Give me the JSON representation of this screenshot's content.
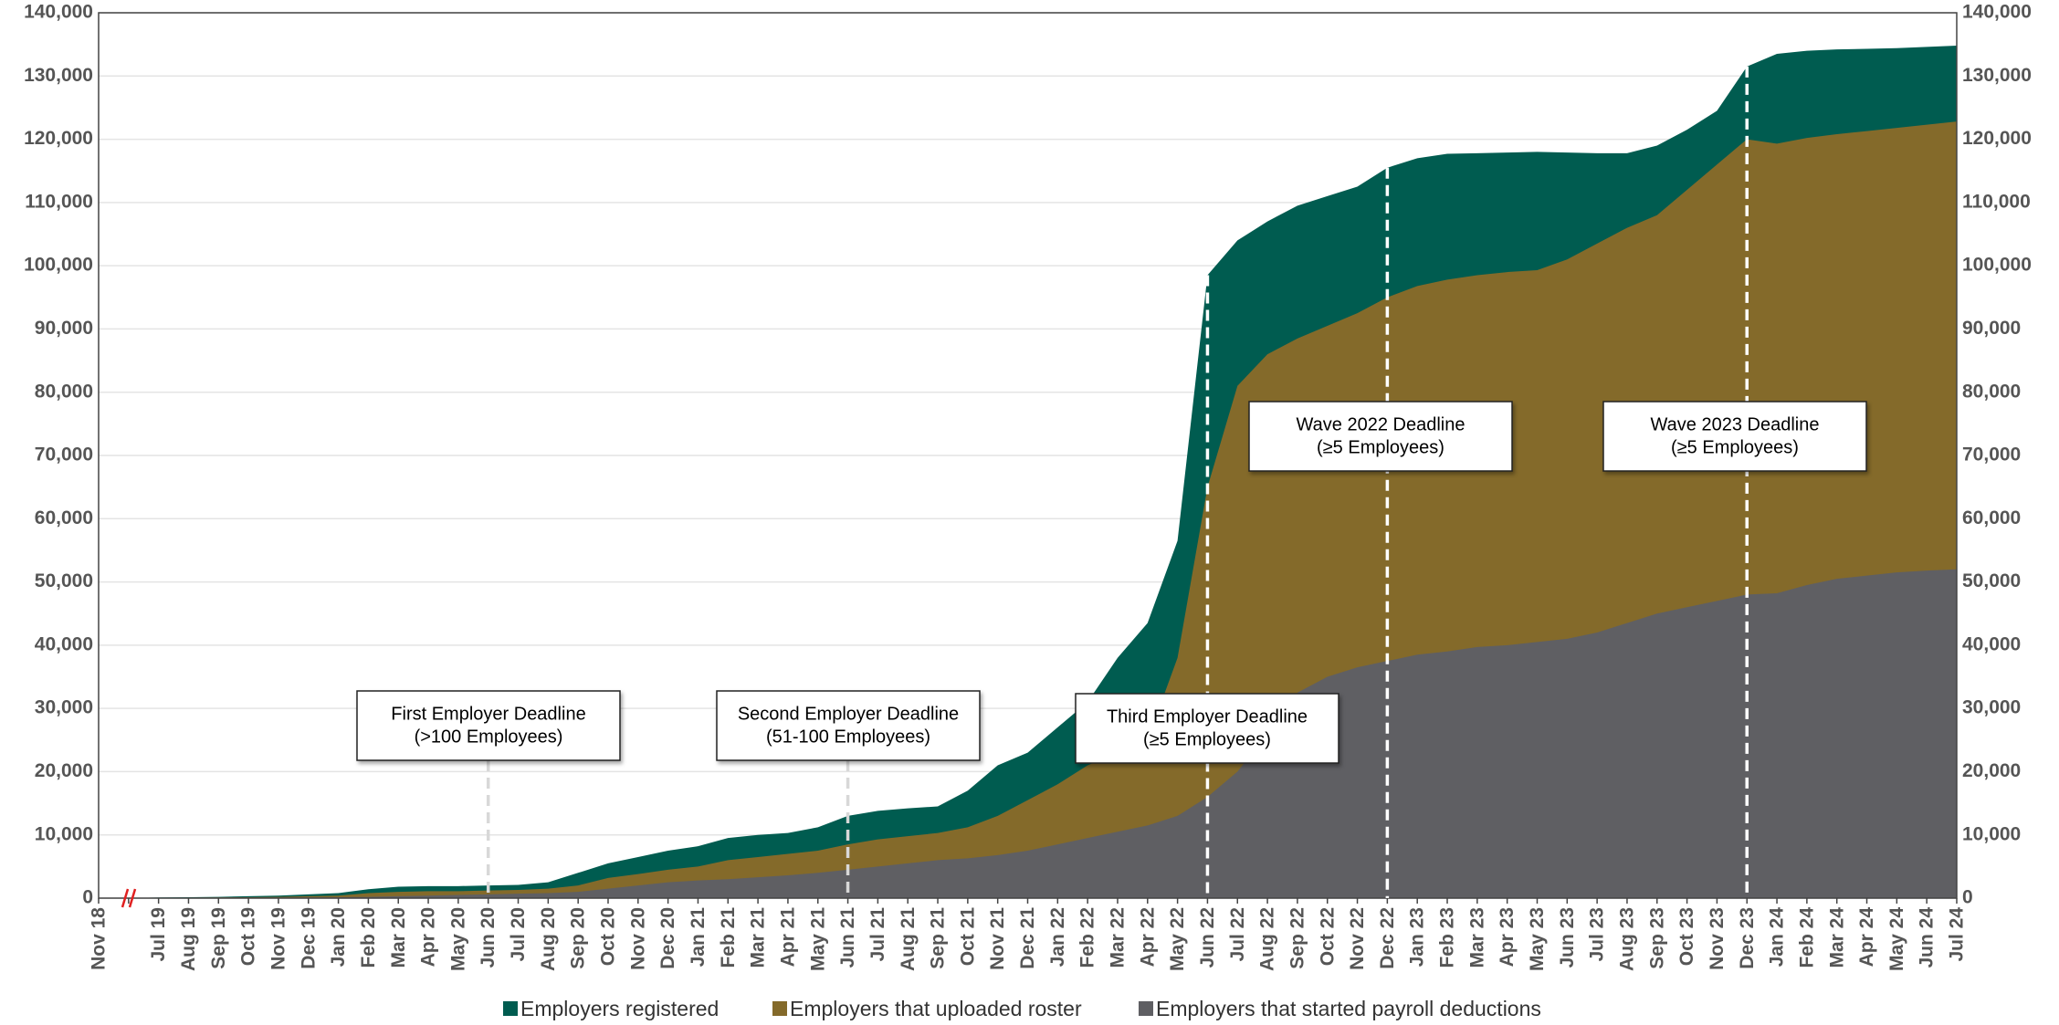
{
  "chart_data": {
    "type": "area",
    "categories": [
      "Nov 18",
      null,
      "Jul 19",
      "Aug 19",
      "Sep 19",
      "Oct 19",
      "Nov 19",
      "Dec 19",
      "Jan 20",
      "Feb 20",
      "Mar 20",
      "Apr 20",
      "May 20",
      "Jun 20",
      "Jul 20",
      "Aug 20",
      "Sep 20",
      "Oct 20",
      "Nov 20",
      "Dec 20",
      "Jan 21",
      "Feb 21",
      "Mar 21",
      "Apr 21",
      "May 21",
      "Jun 21",
      "Jul 21",
      "Aug 21",
      "Sep 21",
      "Oct 21",
      "Nov 21",
      "Dec 21",
      "Jan 22",
      "Feb 22",
      "Mar 22",
      "Apr 22",
      "May 22",
      "Jun 22",
      "Jul 22",
      "Aug 22",
      "Sep 22",
      "Oct 22",
      "Nov 22",
      "Dec 22",
      "Jan 23",
      "Feb 23",
      "Mar 23",
      "Apr 23",
      "May 23",
      "Jun 23",
      "Jul 23",
      "Aug 23",
      "Sep 23",
      "Oct 23",
      "Nov 23",
      "Dec 23",
      "Jan 24",
      "Feb 24",
      "Mar 24",
      "Apr 24",
      "May 24",
      "Jun 24",
      "Jul 24"
    ],
    "series": [
      {
        "name": "Employers registered",
        "color": "#005c50",
        "values": [
          0,
          0,
          100,
          150,
          200,
          300,
          400,
          600,
          800,
          1400,
          1800,
          1900,
          1900,
          2000,
          2100,
          2500,
          4000,
          5500,
          6500,
          7500,
          8200,
          9500,
          10000,
          10300,
          11200,
          13000,
          13800,
          14200,
          14500,
          17000,
          21000,
          23000,
          27000,
          31000,
          38000,
          43500,
          56500,
          98500,
          104000,
          107000,
          109500,
          111000,
          112500,
          115500,
          117000,
          117700,
          117800,
          117900,
          118000,
          117900,
          117800,
          117800,
          119000,
          121500,
          124500,
          131500,
          133500,
          134000,
          134200,
          134300,
          134400,
          134600,
          134800
        ]
      },
      {
        "name": "Employers that uploaded roster",
        "color": "#846a2a",
        "values": [
          0,
          0,
          50,
          80,
          100,
          150,
          200,
          300,
          400,
          800,
          1000,
          1100,
          1100,
          1200,
          1300,
          1500,
          2000,
          3200,
          3800,
          4500,
          5000,
          6000,
          6500,
          7000,
          7500,
          8500,
          9300,
          9800,
          10300,
          11200,
          13000,
          15500,
          18000,
          21000,
          23000,
          25000,
          38000,
          65000,
          81000,
          86000,
          88500,
          90500,
          92500,
          95000,
          96800,
          97800,
          98500,
          99000,
          99300,
          101000,
          103500,
          106000,
          108000,
          112000,
          116000,
          120000,
          119300,
          120200,
          120800,
          121300,
          121800,
          122300,
          122800
        ]
      },
      {
        "name": "Employers that started payroll deductions",
        "color": "#5f5f63",
        "values": [
          0,
          0,
          0,
          0,
          0,
          0,
          50,
          100,
          150,
          200,
          300,
          400,
          500,
          600,
          700,
          800,
          1000,
          1500,
          2000,
          2500,
          2800,
          3000,
          3300,
          3600,
          4000,
          4500,
          5000,
          5500,
          6000,
          6300,
          6800,
          7500,
          8500,
          9500,
          10500,
          11500,
          13000,
          16000,
          20000,
          26000,
          32500,
          35000,
          36500,
          37500,
          38500,
          39000,
          39700,
          40000,
          40500,
          41000,
          42000,
          43500,
          45000,
          46000,
          47000,
          48000,
          48200,
          49500,
          50500,
          51000,
          51500,
          51800,
          52000
        ]
      }
    ],
    "ylim": [
      0,
      140000
    ],
    "yticks": [
      0,
      {
        "value": 10000,
        "label": "10,000"
      },
      {
        "value": 20000,
        "label": "20,000"
      },
      {
        "value": 30000,
        "label": "30,000"
      },
      {
        "value": 40000,
        "label": "40,000"
      },
      {
        "value": 50000,
        "label": "50,000"
      },
      {
        "value": 60000,
        "label": "60,000"
      },
      {
        "value": 70000,
        "label": "70,000"
      },
      {
        "value": 80000,
        "label": "80,000"
      },
      {
        "value": 90000,
        "label": "90,000"
      },
      {
        "value": 100000,
        "label": "100,000"
      },
      {
        "value": 110000,
        "label": "110,000"
      },
      {
        "value": 120000,
        "label": "120,000"
      },
      {
        "value": 130000,
        "label": "130,000"
      },
      {
        "value": 140000,
        "label": "140,000"
      }
    ],
    "grid": true,
    "legend": "bottom",
    "annotations": [
      {
        "lines": [
          "First Employer Deadline",
          "(>100 Employees)"
        ],
        "at": "Jun 20"
      },
      {
        "lines": [
          "Second Employer Deadline",
          "(51-100 Employees)"
        ],
        "at": "Jun 21"
      },
      {
        "lines": [
          "Third Employer Deadline",
          "(≥5 Employees)"
        ],
        "at": "Jun 22"
      },
      {
        "lines": [
          "Wave 2022 Deadline",
          "(≥5 Employees)"
        ],
        "at": "Dec 22"
      },
      {
        "lines": [
          "Wave 2023 Deadline",
          "(≥5 Employees)"
        ],
        "at": "Dec 23"
      }
    ]
  }
}
